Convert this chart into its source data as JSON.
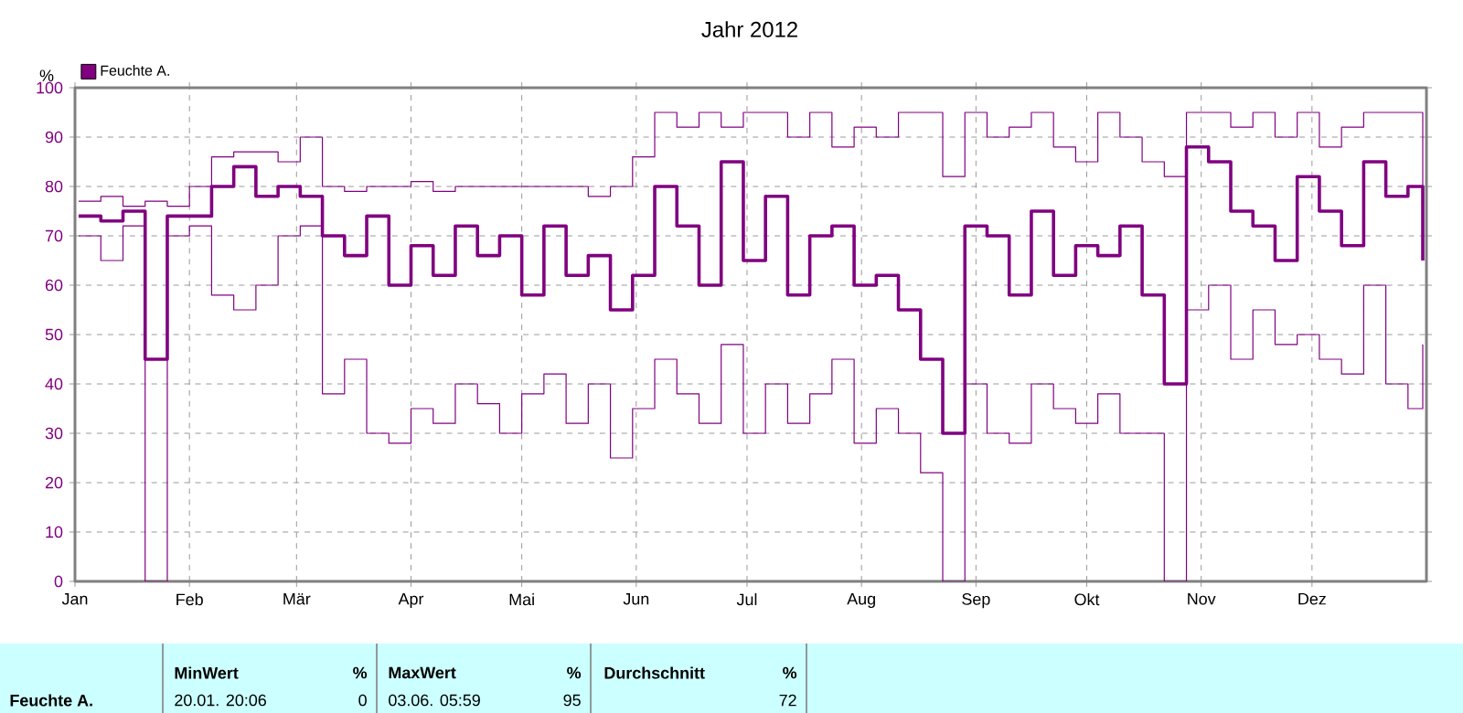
{
  "chart_data": {
    "type": "step",
    "title": "Jahr 2012",
    "ylabel": "%",
    "x": [
      "2012-01-02",
      "2012-01-08",
      "2012-01-14",
      "2012-01-20",
      "2012-01-26",
      "2012-02-01",
      "2012-02-07",
      "2012-02-13",
      "2012-02-19",
      "2012-02-25",
      "2012-03-02",
      "2012-03-08",
      "2012-03-14",
      "2012-03-20",
      "2012-03-26",
      "2012-04-01",
      "2012-04-07",
      "2012-04-13",
      "2012-04-19",
      "2012-04-25",
      "2012-05-01",
      "2012-05-07",
      "2012-05-13",
      "2012-05-19",
      "2012-05-25",
      "2012-05-31",
      "2012-06-06",
      "2012-06-12",
      "2012-06-18",
      "2012-06-24",
      "2012-06-30",
      "2012-07-06",
      "2012-07-12",
      "2012-07-18",
      "2012-07-24",
      "2012-07-30",
      "2012-08-05",
      "2012-08-11",
      "2012-08-17",
      "2012-08-23",
      "2012-08-29",
      "2012-09-04",
      "2012-09-10",
      "2012-09-16",
      "2012-09-22",
      "2012-09-28",
      "2012-10-04",
      "2012-10-10",
      "2012-10-16",
      "2012-10-22",
      "2012-10-28",
      "2012-11-03",
      "2012-11-09",
      "2012-11-15",
      "2012-11-21",
      "2012-11-27",
      "2012-12-03",
      "2012-12-09",
      "2012-12-15",
      "2012-12-21",
      "2012-12-27",
      "2012-12-31"
    ],
    "series": [
      {
        "name": "Feuchte A.",
        "color": "#800080",
        "values": [
          74,
          73,
          75,
          45,
          74,
          74,
          80,
          84,
          78,
          80,
          78,
          70,
          66,
          74,
          60,
          68,
          62,
          72,
          66,
          70,
          58,
          72,
          62,
          66,
          55,
          62,
          80,
          72,
          60,
          85,
          65,
          78,
          58,
          70,
          72,
          60,
          62,
          55,
          45,
          30,
          72,
          70,
          58,
          75,
          62,
          68,
          66,
          72,
          58,
          40,
          88,
          85,
          75,
          72,
          65,
          82,
          75,
          68,
          85,
          78,
          80,
          65
        ]
      },
      {
        "color": "#800080",
        "values": [
          77,
          78,
          76,
          77,
          76,
          80,
          86,
          87,
          87,
          85,
          90,
          80,
          79,
          80,
          80,
          81,
          79,
          80,
          80,
          80,
          80,
          80,
          80,
          78,
          80,
          86,
          95,
          92,
          95,
          92,
          95,
          95,
          90,
          95,
          88,
          92,
          90,
          95,
          95,
          82,
          95,
          90,
          92,
          95,
          88,
          85,
          95,
          90,
          85,
          82,
          95,
          95,
          92,
          95,
          90,
          95,
          88,
          92,
          95,
          95,
          95,
          80
        ]
      },
      {
        "color": "#800080",
        "values": [
          70,
          65,
          72,
          0,
          70,
          72,
          58,
          55,
          60,
          70,
          72,
          38,
          45,
          30,
          28,
          35,
          32,
          40,
          36,
          30,
          38,
          42,
          32,
          40,
          25,
          35,
          45,
          38,
          32,
          48,
          30,
          40,
          32,
          38,
          45,
          28,
          35,
          30,
          22,
          0,
          40,
          30,
          28,
          40,
          35,
          32,
          38,
          30,
          30,
          0,
          55,
          60,
          45,
          55,
          48,
          50,
          45,
          42,
          60,
          40,
          35,
          48
        ]
      }
    ],
    "xlim": [
      "2012-01-01",
      "2013-01-01"
    ],
    "xticks": [
      {
        "value": "2012-01-01",
        "label": "Jan"
      },
      {
        "value": "2012-02-01",
        "label": "Feb"
      },
      {
        "value": "2012-03-01",
        "label": "Mär"
      },
      {
        "value": "2012-04-01",
        "label": "Apr"
      },
      {
        "value": "2012-05-01",
        "label": "Mai"
      },
      {
        "value": "2012-06-01",
        "label": "Jun"
      },
      {
        "value": "2012-07-01",
        "label": "Jul"
      },
      {
        "value": "2012-08-01",
        "label": "Aug"
      },
      {
        "value": "2012-09-01",
        "label": "Sep"
      },
      {
        "value": "2012-10-01",
        "label": "Okt"
      },
      {
        "value": "2012-11-01",
        "label": "Nov"
      },
      {
        "value": "2012-12-01",
        "label": "Dez"
      }
    ],
    "ylim": [
      0,
      100
    ],
    "yticks": [
      0,
      10,
      20,
      30,
      40,
      50,
      60,
      70,
      80,
      90,
      100
    ],
    "grid": true,
    "legend": "top left",
    "marker": "none",
    "line_style": "solid",
    "annotations": [
      "Feuchte A.",
      "MinWert",
      "%",
      "20.01.  20:06",
      "0",
      "MaxWert",
      "%",
      "03.06.  05:59",
      "95",
      "Durchschnitt",
      "%",
      "72"
    ]
  }
}
